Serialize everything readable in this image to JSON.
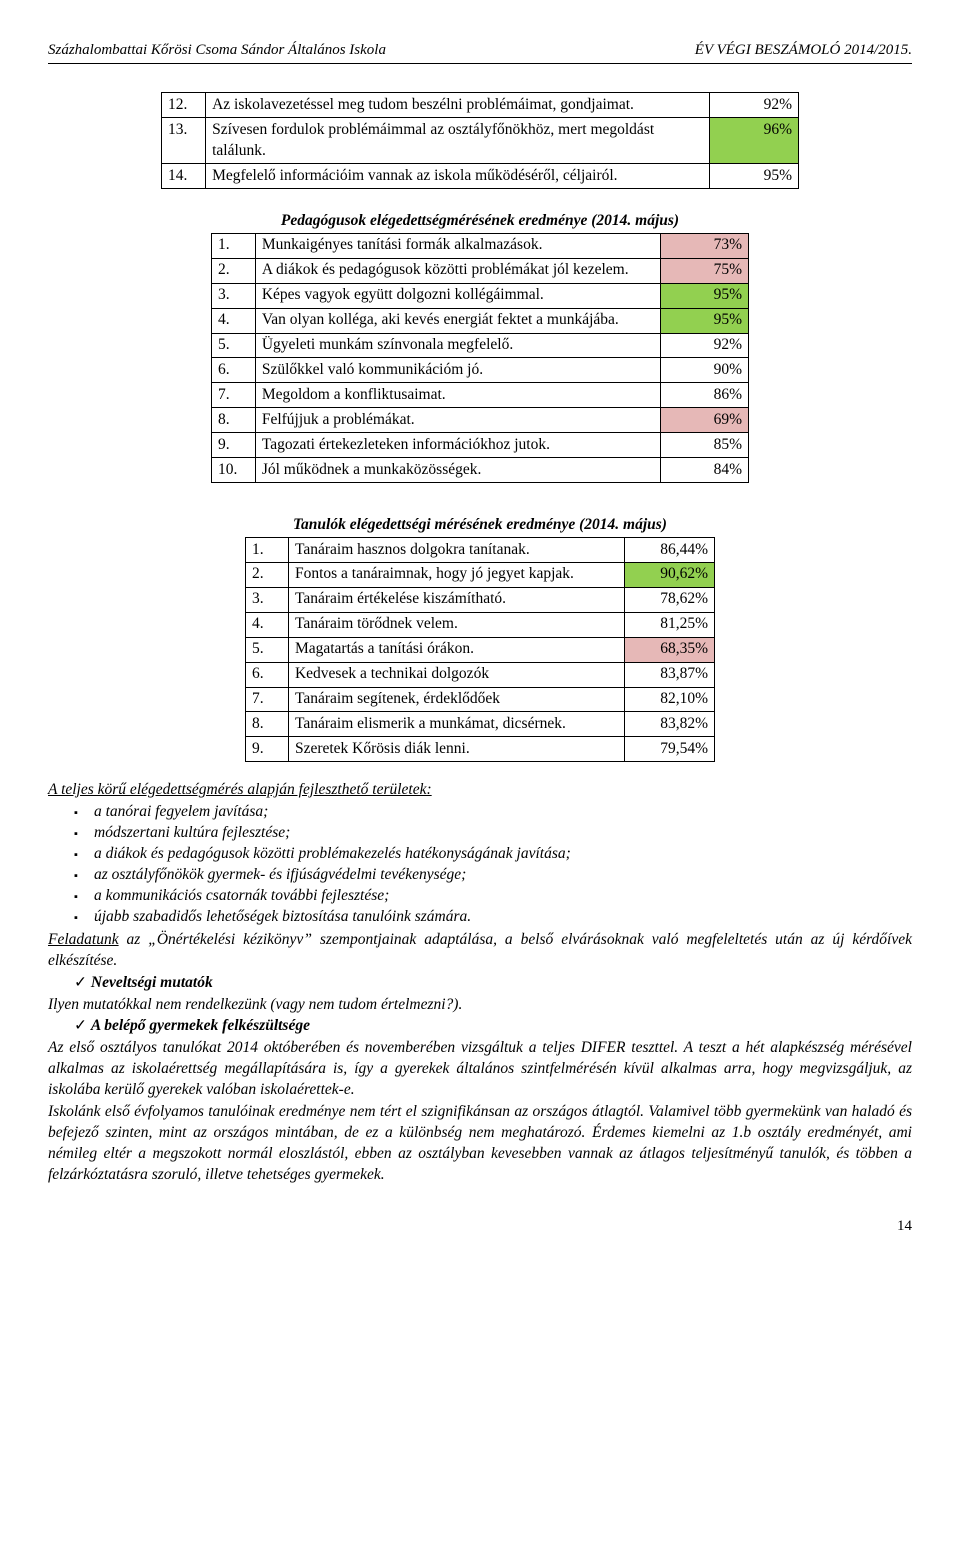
{
  "header": {
    "left": "Százhalombattai Kőrösi Csoma Sándor Általános Iskola",
    "right": "ÉV VÉGI BESZÁMOLÓ 2014/2015."
  },
  "table1": {
    "rows": [
      {
        "n": "12.",
        "text": "Az iskolavezetéssel meg tudom beszélni problémáimat, gondjaimat.",
        "val": "92%",
        "hl": ""
      },
      {
        "n": "13.",
        "text": "Szívesen fordulok problémáimmal az osztályfőnökhöz, mert megoldást találunk.",
        "val": "96%",
        "hl": "green"
      },
      {
        "n": "14.",
        "text": "Megfelelő információim vannak az iskola működéséről, céljairól.",
        "val": "95%",
        "hl": ""
      }
    ]
  },
  "table2": {
    "caption": "Pedagógusok elégedettségmérésének eredménye (2014. május)",
    "rows": [
      {
        "n": "1.",
        "text": "Munkaigényes tanítási formák alkalmazások.",
        "val": "73%",
        "hl": "pink"
      },
      {
        "n": "2.",
        "text": "A diákok és pedagógusok közötti problémákat jól kezelem.",
        "val": "75%",
        "hl": "pink"
      },
      {
        "n": "3.",
        "text": "Képes vagyok együtt dolgozni kollégáimmal.",
        "val": "95%",
        "hl": "green"
      },
      {
        "n": "4.",
        "text": "Van olyan kolléga, aki kevés energiát fektet a munkájába.",
        "val": "95%",
        "hl": "green"
      },
      {
        "n": "5.",
        "text": "Ügyeleti munkám színvonala megfelelő.",
        "val": "92%",
        "hl": ""
      },
      {
        "n": "6.",
        "text": "Szülőkkel való kommunikációm jó.",
        "val": "90%",
        "hl": ""
      },
      {
        "n": "7.",
        "text": "Megoldom a konfliktusaimat.",
        "val": "86%",
        "hl": ""
      },
      {
        "n": "8.",
        "text": "Felfújjuk a problémákat.",
        "val": "69%",
        "hl": "pink"
      },
      {
        "n": "9.",
        "text": "Tagozati értekezleteken információkhoz jutok.",
        "val": "85%",
        "hl": ""
      },
      {
        "n": "10.",
        "text": "Jól működnek a munkaközösségek.",
        "val": "84%",
        "hl": ""
      }
    ]
  },
  "table3": {
    "caption": "Tanulók elégedettségi mérésének eredménye (2014. május)",
    "rows": [
      {
        "n": "1.",
        "text": "Tanáraim hasznos dolgokra tanítanak.",
        "val": "86,44%",
        "hl": ""
      },
      {
        "n": "2.",
        "text": "Fontos a tanáraimnak, hogy jó jegyet kapjak.",
        "val": "90,62%",
        "hl": "green"
      },
      {
        "n": "3.",
        "text": "Tanáraim értékelése kiszámítható.",
        "val": "78,62%",
        "hl": ""
      },
      {
        "n": "4.",
        "text": "Tanáraim törődnek velem.",
        "val": "81,25%",
        "hl": ""
      },
      {
        "n": "5.",
        "text": "Magatartás a tanítási órákon.",
        "val": "68,35%",
        "hl": "pink"
      },
      {
        "n": "6.",
        "text": "Kedvesek a technikai dolgozók",
        "val": "83,87%",
        "hl": ""
      },
      {
        "n": "7.",
        "text": "Tanáraim segítenek, érdeklődőek",
        "val": "82,10%",
        "hl": ""
      },
      {
        "n": "8.",
        "text": "Tanáraim elismerik a munkámat, dicsérnek.",
        "val": "83,82%",
        "hl": ""
      },
      {
        "n": "9.",
        "text": "Szeretek Kőrösis diák lenni.",
        "val": "79,54%",
        "hl": ""
      }
    ]
  },
  "body": {
    "sec1_title": "A teljes körű elégedettségmérés alapján fejleszthető területek:",
    "sec1_bullets": [
      "a tanórai fegyelem javítása;",
      "módszertani kultúra fejlesztése;",
      "a diákok és pedagógusok közötti problémakezelés hatékonyságának javítása;",
      "az osztályfőnökök gyermek- és ifjúságvédelmi tevékenysége;",
      "a kommunikációs csatornák további fejlesztése;",
      "újabb szabadidős lehetőségek biztosítása tanulóink számára."
    ],
    "para1_lead": "Feladatunk",
    "para1_rest": " az „Önértékelési kézikönyv” szempontjainak adaptálása, a belső elvárásoknak való megfeleltetés után az új kérdőívek elkészítése.",
    "check1": "Neveltségi mutatók",
    "para2": "Ilyen mutatókkal nem rendelkezünk (vagy nem tudom értelmezni?).",
    "check2": "A belépő gyermekek felkészültsége",
    "para3": "Az első osztályos tanulókat 2014 októberében és novemberében vizsgáltuk a teljes DIFER teszttel. A teszt a hét alapkészség mérésével alkalmas az iskolaérettség megállapítására is, így a gyerekek általános szintfelmérésén kívül alkalmas arra, hogy megvizsgáljuk, az iskolába kerülő gyerekek valóban iskolaérettek-e.",
    "para4": "Iskolánk első évfolyamos tanulóinak eredménye nem tért el szignifikánsan az országos átlagtól. Valamivel több gyermekünk van haladó és befejező szinten, mint az országos mintában, de ez a különbség nem meghatározó. Érdemes kiemelni az 1.b osztály eredményét, ami némileg eltér a megszokott normál eloszlástól, ebben az osztályban kevesebben vannak az átlagos teljesítményű tanulók, és többen a felzárkóztatásra szoruló, illetve tehetséges gyermekek."
  },
  "pagenum": "14",
  "colors": {
    "green": "#92d050",
    "pink": "#e6b8b7"
  }
}
